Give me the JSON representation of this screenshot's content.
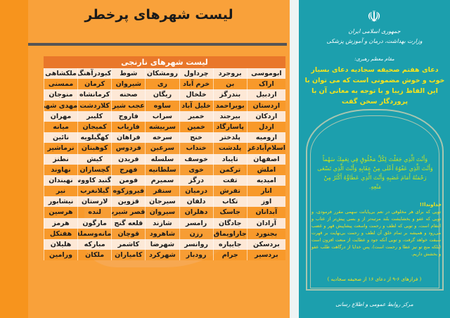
{
  "title": "لیست شهرهای پرخطر",
  "table": {
    "header": "لیست شهرهای نارنجی",
    "rows": [
      [
        "ابوموسی",
        "بروجرد",
        "چرداول",
        "رومشکان",
        "شوط",
        "کبودرآهنگ",
        "ملکشاهی"
      ],
      [
        "اراک",
        "بن",
        "خرم آباد",
        "ری",
        "شیروان",
        "کرمان",
        "ممسنی"
      ],
      [
        "اردبیل",
        "بندرگز",
        "خلخال",
        "ریگان",
        "صحنه",
        "کرمانشاه",
        "منوجان"
      ],
      [
        "اردستان",
        "بویراحمد",
        "خلیل آباد",
        "ساوه",
        "عجب شیر",
        "کلاردشت",
        "مهدی شهر"
      ],
      [
        "اردکان",
        "بیرجند",
        "خمیر",
        "سراب",
        "فاروج",
        "کلیبر",
        "مهران"
      ],
      [
        "اردل",
        "پاسارگاد",
        "خمین",
        "سربیشه",
        "فاریاب",
        "کمیجان",
        "میانه"
      ],
      [
        "ارومیه",
        "پلدختر",
        "خنج",
        "سرخه",
        "فراهان",
        "کهگیلویه",
        "نائین"
      ],
      [
        "اسلام‌آبادغرب",
        "پلدشت",
        "خنداب",
        "سرعین",
        "فردوس",
        "کوهبنان",
        "نرماشیر"
      ],
      [
        "اصفهان",
        "تایباد",
        "خوسف",
        "سلسله",
        "فریدن",
        "کیش",
        "نطنز"
      ],
      [
        "املش",
        "ترکمن",
        "خوی",
        "سلطانیه",
        "فهرج",
        "گچساران",
        "نهاوند"
      ],
      [
        "امیدیه",
        "تفت",
        "درگز",
        "سمیرم",
        "فومن",
        "گنبد کاووس",
        "نهبندان"
      ],
      [
        "انار",
        "تفرش",
        "درمیان",
        "سنقر",
        "فیروزکوه",
        "گیلانغرب",
        "نیر"
      ],
      [
        "اوز",
        "تکاب",
        "دلفان",
        "سیرجان",
        "قزوین",
        "لارستان",
        "نیشابور"
      ],
      [
        "آبدانان",
        "جاسک",
        "دهلران",
        "سیروان",
        "قصر شیرین",
        "لنده",
        "هرسین"
      ],
      [
        "آرادان",
        "جادگان",
        "رامسر",
        "شازند",
        "قلعه گنج",
        "مارگون",
        "هرمز"
      ],
      [
        "بجنورد",
        "جاراویماق",
        "رزن",
        "شاهرود",
        "قوچان",
        "مانه‌وسملقان",
        "هفتکل"
      ],
      [
        "بردسکن",
        "جایپاره",
        "روانسر",
        "شهرضا",
        "کاشمر",
        "مبارکه",
        "هلیلان"
      ],
      [
        "بردسیر",
        "جرام",
        "رودبار",
        "شهرکرد",
        "کامیاران",
        "ملکان",
        "ورامین"
      ]
    ]
  },
  "right": {
    "ministry_line1": "جمهوری اسلامی ایران",
    "ministry_line2": "وزارت بهداشت، درمان و آموزش پزشکی",
    "leader_label": "مقام معظم رهبری:",
    "headline": "دعای هفتم صحیفه سجادیه دعای بسیار خوب و خوش مضمونی است که می توان با این الفاظ زیبا و با توجه به معانی آن با پروردگار سخن گفت",
    "arabic": "وَأَنْتَ الَّذِي جَعَلْتَ لِكُلِّ مَخْلُوقٍ فِي نِعَمِكَ سَهْماً وَأَنْتَ الَّذِي عَفْوُهُ أَعْلَى مِنْ عِقَابِهِ وَأَنْتَ الَّذِي تَسْعَى رَحْمَتُهُ أَمَامَ غَضَبِهِ وَأَنْتَ الَّذِي عَطَاؤُهُ أَكْثَرُ مِنْ مَنْعِهِ.",
    "khodaya": "خداوندا!!",
    "body": "تویی که برای هر مخلوقی در نعم بی‌پایانت سهمی مقرر فرمودی، و تویی که عفو و بخشایشت بلند مرتبه‌تر از و بسی پیش‌تر از عتاب و انتقام است، و تویی که لطف و رحمت واسعت پیشاپیش قهر و غضب می‌رود و همیشه بر تمام خلق آن لطف و رحمت بی‌نهایت بر قهرت سبقت خواهد گرفت، و تویی آنکه جود و عطایت از منعت افزون است (بلکه منع تو نیز عطا و رحمت است)، پس خدایا از درگاهت طلب عفو و بخشش داریم.",
    "source": "( فرازهای ۶-۹ از دعای ۱۶ از صحیفه سجادیه )",
    "footer": "مرکز روابط عمومی و اطلاع رسانی"
  },
  "colors": {
    "orange": "#f7941d",
    "teal": "#1c9fad",
    "yellow": "#f7e31b"
  }
}
